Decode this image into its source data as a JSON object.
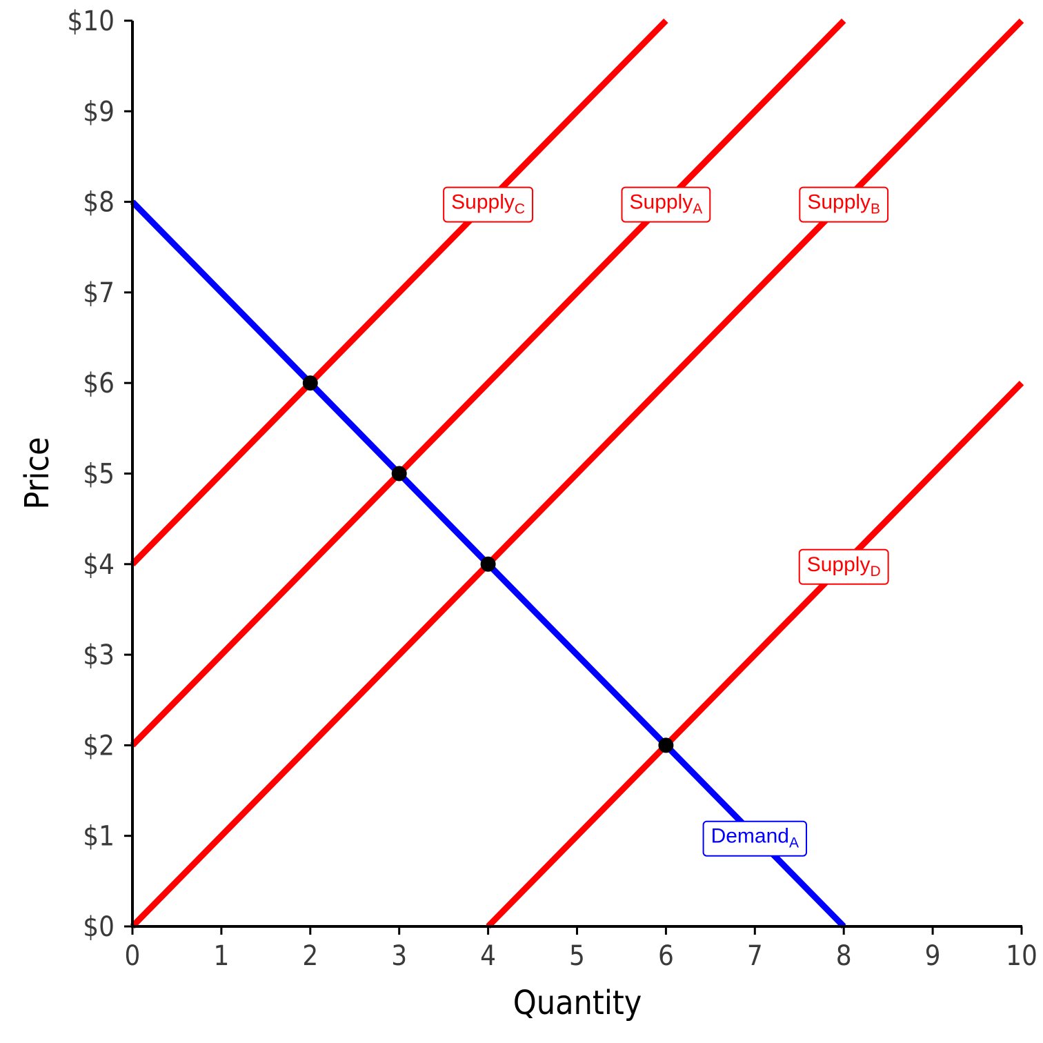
{
  "chart_data": {
    "type": "line",
    "xlabel": "Quantity",
    "ylabel": "Price",
    "xlim": [
      0,
      10
    ],
    "ylim": [
      0,
      10
    ],
    "x_ticks": [
      {
        "value": 0,
        "label": "0"
      },
      {
        "value": 1,
        "label": "1"
      },
      {
        "value": 2,
        "label": "2"
      },
      {
        "value": 3,
        "label": "3"
      },
      {
        "value": 4,
        "label": "4"
      },
      {
        "value": 5,
        "label": "5"
      },
      {
        "value": 6,
        "label": "6"
      },
      {
        "value": 7,
        "label": "7"
      },
      {
        "value": 8,
        "label": "8"
      },
      {
        "value": 9,
        "label": "9"
      },
      {
        "value": 10,
        "label": "10"
      }
    ],
    "y_ticks": [
      {
        "value": 0,
        "label": "$0"
      },
      {
        "value": 1,
        "label": "$1"
      },
      {
        "value": 2,
        "label": "$2"
      },
      {
        "value": 3,
        "label": "$3"
      },
      {
        "value": 4,
        "label": "$4"
      },
      {
        "value": 5,
        "label": "$5"
      },
      {
        "value": 6,
        "label": "$6"
      },
      {
        "value": 7,
        "label": "$7"
      },
      {
        "value": 8,
        "label": "$8"
      },
      {
        "value": 9,
        "label": "$9"
      },
      {
        "value": 10,
        "label": "$10"
      }
    ],
    "grid": false,
    "series": [
      {
        "id": "demand-a",
        "name": "Demand",
        "subscript": "A",
        "color": "#0000ff",
        "points": [
          [
            0,
            8
          ],
          [
            8,
            0
          ]
        ],
        "label_at": [
          7,
          1
        ]
      },
      {
        "id": "supply-c",
        "name": "Supply",
        "subscript": "C",
        "color": "#ff0000",
        "points": [
          [
            0,
            4
          ],
          [
            6,
            10
          ]
        ],
        "label_at": [
          4,
          8
        ]
      },
      {
        "id": "supply-a",
        "name": "Supply",
        "subscript": "A",
        "color": "#ff0000",
        "points": [
          [
            0,
            2
          ],
          [
            8,
            10
          ]
        ],
        "label_at": [
          6,
          8
        ]
      },
      {
        "id": "supply-b",
        "name": "Supply",
        "subscript": "B",
        "color": "#ff0000",
        "points": [
          [
            0,
            0
          ],
          [
            10,
            10
          ]
        ],
        "label_at": [
          8,
          8
        ]
      },
      {
        "id": "supply-d",
        "name": "Supply",
        "subscript": "D",
        "color": "#ff0000",
        "points": [
          [
            4,
            0
          ],
          [
            10,
            6
          ]
        ],
        "label_at": [
          8,
          4
        ]
      }
    ],
    "points": [
      {
        "x": 2,
        "y": 6
      },
      {
        "x": 3,
        "y": 5
      },
      {
        "x": 4,
        "y": 4
      },
      {
        "x": 6,
        "y": 2
      }
    ],
    "point_color": "#000000"
  }
}
